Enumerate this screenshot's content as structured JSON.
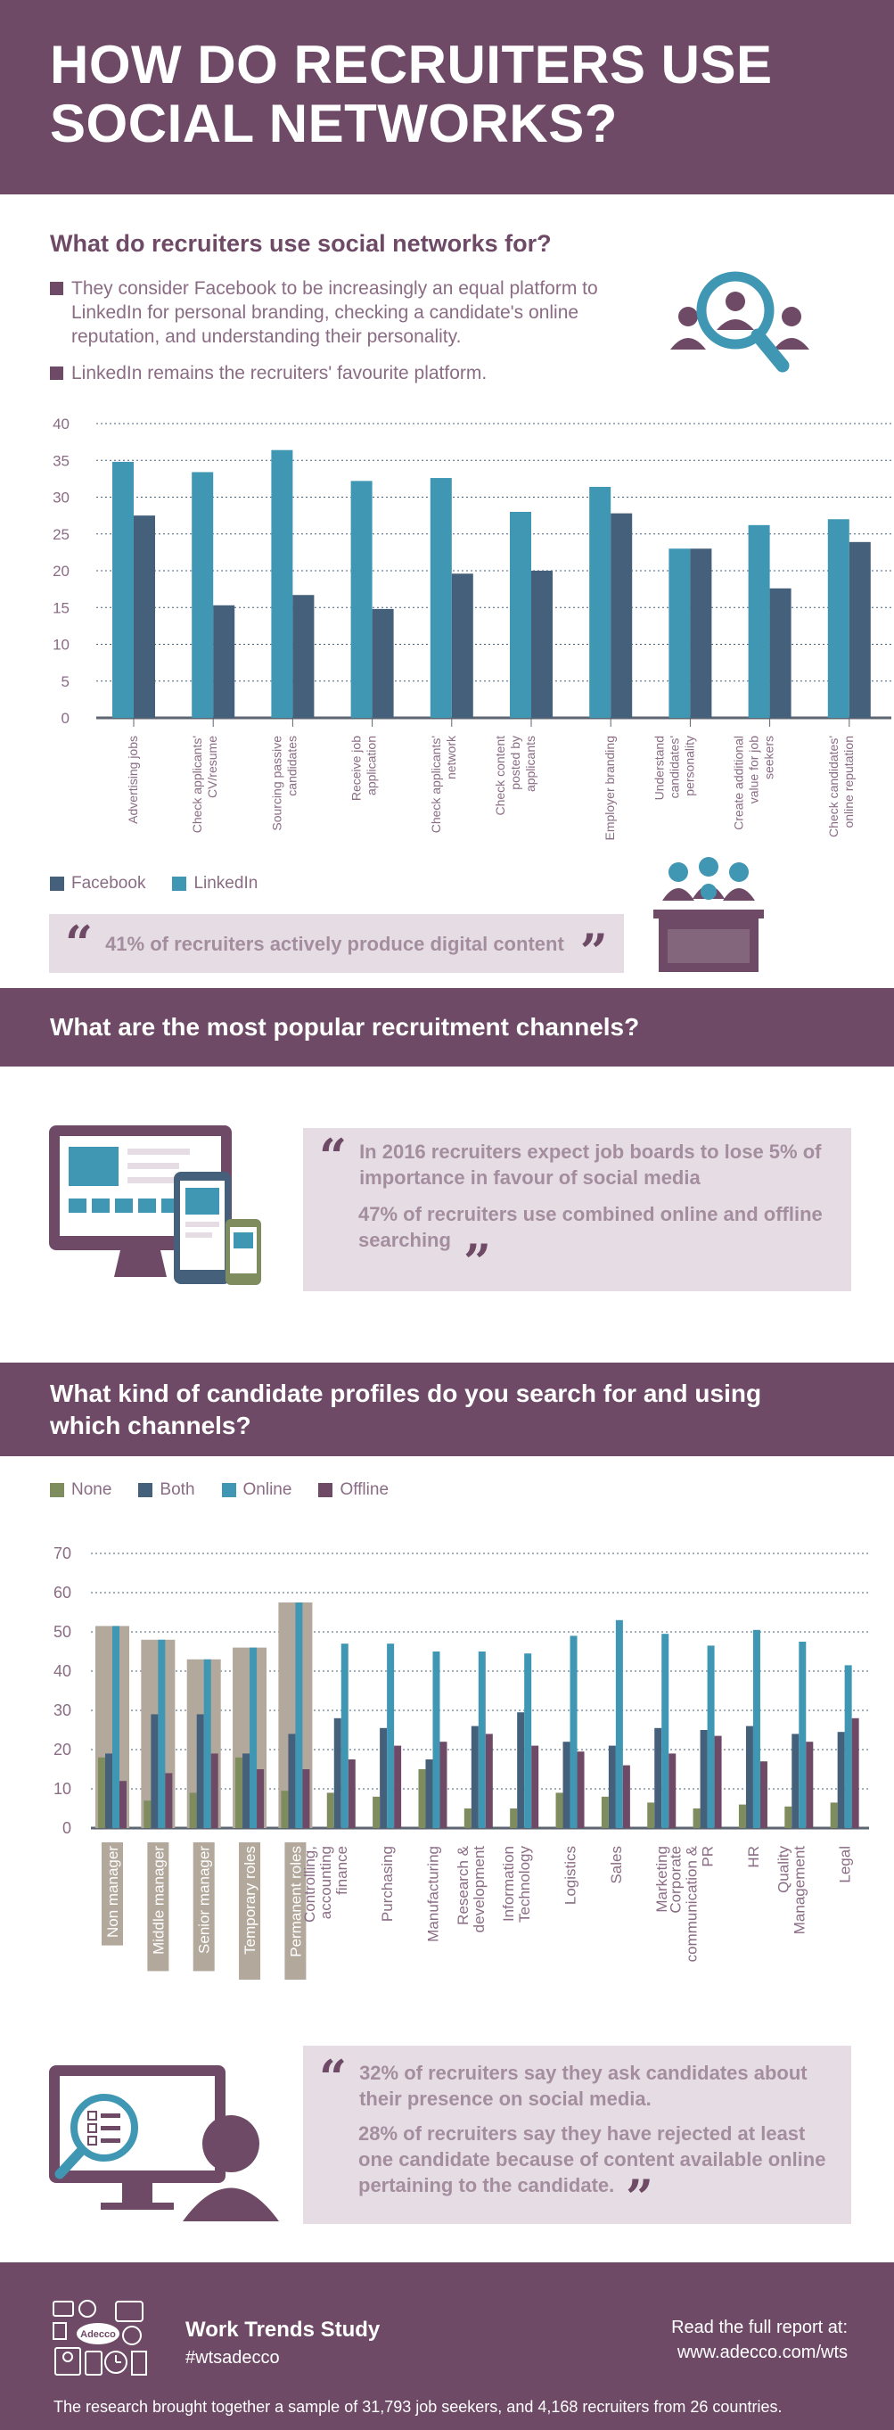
{
  "header": {
    "title": "HOW DO RECRUITERS USE SOCIAL NETWORKS?"
  },
  "section1": {
    "heading": "What do recruiters use social networks for?",
    "bullets": [
      "They consider Facebook to be increasingly an equal platform to LinkedIn for personal branding, checking a candidate's online reputation, and understanding their personality.",
      "LinkedIn remains the recruiters' favourite platform."
    ],
    "legend": {
      "facebook": "Facebook",
      "linkedin": "LinkedIn"
    },
    "quote": "41% of recruiters actively produce digital content"
  },
  "section2": {
    "heading": "What are the most popular recruitment channels?",
    "quote1": "In 2016 recruiters expect job boards to lose 5% of importance in favour of social media",
    "quote2": "47% of recruiters use combined online and offline searching"
  },
  "section3": {
    "heading": "What kind of candidate profiles do you search for and using which channels?",
    "legend": {
      "none": "None",
      "both": "Both",
      "online": "Online",
      "offline": "Offline"
    },
    "quote1": "32% of recruiters say they ask candidates about their presence on social media.",
    "quote2": "28% of recruiters say they have rejected at least one candidate because of content available online pertaining to the candidate."
  },
  "footer": {
    "study": "Work Trends Study",
    "hashtag": "#wtsadecco",
    "read_label": "Read the full report at:",
    "url": "www.adecco.com/wts",
    "note": "The research brought together a sample of 31,793 job seekers, and 4,168 recruiters from 26 countries.",
    "logo_text": "Adecco"
  },
  "colors": {
    "purple": "#6e4a66",
    "facebook": "#45607b",
    "linkedin": "#3f97b3",
    "none": "#7e8c5e",
    "offline": "#6e4a66",
    "highlight": "#b3a89c"
  },
  "chart_data": [
    {
      "type": "bar",
      "categories": [
        "Advertising jobs",
        "Check applicants' CV/resume",
        "Sourcing passive candidates",
        "Receive job application",
        "Check applicants' network",
        "Check content posted by applicants",
        "Employer branding",
        "Understand candidates' personality",
        "Create additional value for job seekers",
        "Check candidates' online reputation"
      ],
      "series": [
        {
          "name": "Facebook",
          "values": [
            27.5,
            15.3,
            16.7,
            14.8,
            19.6,
            20.0,
            27.8,
            23.0,
            17.6,
            23.9
          ]
        },
        {
          "name": "LinkedIn",
          "values": [
            34.8,
            33.4,
            36.4,
            32.2,
            32.6,
            28.0,
            31.4,
            23.0,
            26.2,
            27.0
          ]
        }
      ],
      "ylim": [
        0,
        40
      ],
      "yticks": [
        0,
        5,
        10,
        15,
        20,
        25,
        30,
        35,
        40
      ],
      "grid": true,
      "legend": "bottom-left"
    },
    {
      "type": "bar",
      "categories": [
        "Non manager",
        "Middle manager",
        "Senior manager",
        "Temporary roles",
        "Permanent roles",
        "Controlling, accounting finance",
        "Purchasing",
        "Manufacturing",
        "Research & development",
        "Information Technology",
        "Logistics",
        "Sales",
        "Marketing",
        "Corporate communication & PR",
        "HR",
        "Quality Management",
        "Legal"
      ],
      "highlighted_categories": [
        "Non manager",
        "Middle manager",
        "Senior manager",
        "Temporary roles",
        "Permanent roles"
      ],
      "series": [
        {
          "name": "None",
          "values": [
            18,
            7,
            9,
            18,
            9.5,
            9,
            8,
            15,
            5,
            5,
            9,
            8,
            6.5,
            5,
            6,
            5.5,
            6.5
          ]
        },
        {
          "name": "Both",
          "values": [
            19,
            29,
            29,
            19,
            24,
            28,
            25.5,
            17.5,
            26,
            29.5,
            22,
            21,
            25.5,
            25,
            26,
            24,
            24.5
          ]
        },
        {
          "name": "Online",
          "values": [
            51.5,
            48,
            43,
            46,
            57.5,
            47,
            47,
            45,
            45,
            44.5,
            49,
            53,
            49.5,
            46.5,
            50.5,
            47.5,
            41.5
          ]
        },
        {
          "name": "Offline",
          "values": [
            12,
            14,
            19,
            15,
            15,
            17.5,
            21,
            22,
            24,
            21,
            19.5,
            16,
            19,
            23.5,
            17,
            22,
            28
          ]
        }
      ],
      "ylim": [
        0,
        70
      ],
      "yticks": [
        0,
        10,
        20,
        30,
        40,
        50,
        60,
        70
      ],
      "grid": true,
      "legend": "top-left"
    }
  ]
}
